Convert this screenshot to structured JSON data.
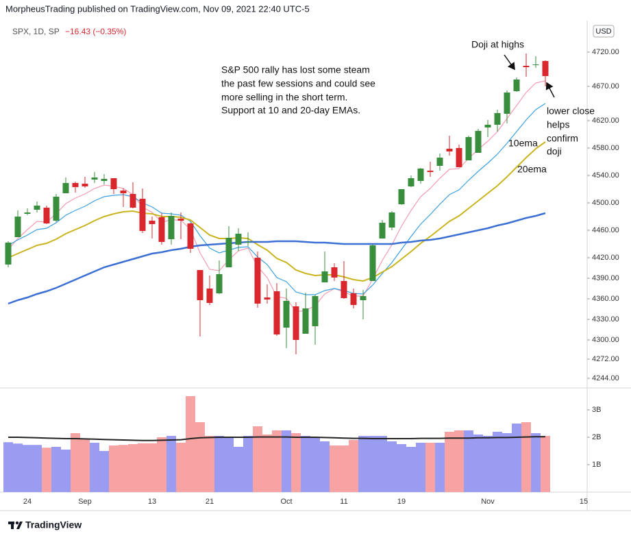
{
  "header": {
    "publisher": "MorpheusTrading published on TradingView.com, Nov 09, 2021 22:40 UTC-5",
    "symbol": "SPX, 1D, SP",
    "change": "−16.43 (−0.35%)"
  },
  "footer": {
    "brand": "TradingView"
  },
  "annotations": {
    "doji": "Doji at highs",
    "note": [
      "S&P 500 rally has lost some steam",
      "the past few sessions and could see",
      "more selling in the short term.",
      "Support at 10 and 20-day EMAs."
    ],
    "confirm": [
      "lower close",
      "helps",
      "confirm",
      "doji"
    ]
  },
  "chart_data": {
    "type": "candlestick",
    "currency": "USD",
    "categories": [
      null,
      null,
      "24",
      null,
      null,
      null,
      null,
      null,
      "Sep",
      null,
      null,
      null,
      null,
      null,
      null,
      "13",
      null,
      null,
      null,
      null,
      null,
      "21",
      null,
      null,
      null,
      null,
      null,
      null,
      null,
      "Oct",
      null,
      null,
      null,
      null,
      null,
      "11",
      null,
      null,
      null,
      null,
      null,
      "19",
      null,
      null,
      null,
      null,
      null,
      null,
      null,
      null,
      "Nov",
      null,
      null,
      null,
      null,
      null,
      null,
      null,
      null,
      null,
      "15"
    ],
    "open": [
      4410,
      4450,
      4484,
      4490,
      4493,
      4474,
      4514,
      4529,
      4528,
      4534,
      4532,
      4536,
      4518,
      4513,
      4506,
      4474,
      4479,
      4447,
      4477,
      4470,
      4402,
      4375,
      4368,
      4406,
      4439,
      4443,
      4420,
      4362,
      4371,
      4318,
      4349,
      4309,
      4320,
      4384,
      4406,
      4386,
      4368,
      4358,
      4386,
      4448,
      4464,
      4498,
      4524,
      4532,
      4547,
      4554,
      4579,
      4580,
      4562,
      4573,
      4610,
      4614,
      4630,
      4663,
      4700,
      4702,
      4707,
      null,
      null,
      null,
      null
    ],
    "high": [
      4444,
      4489,
      4492,
      4502,
      4496,
      4513,
      4537,
      4531,
      4538,
      4545,
      4542,
      4536,
      4521,
      4530,
      4521,
      4480,
      4485,
      4486,
      4486,
      4471,
      4402,
      4394,
      4416,
      4466,
      4463,
      4457,
      4429,
      4381,
      4383,
      4375,
      4355,
      4369,
      4366,
      4429,
      4412,
      4415,
      4375,
      4373,
      4439,
      4475,
      4488,
      4520,
      4540,
      4551,
      4560,
      4572,
      4598,
      4585,
      4598,
      4608,
      4621,
      4636,
      4664,
      4683,
      4718,
      4714,
      4708,
      null,
      null,
      null,
      null
    ],
    "low": [
      4406,
      4450,
      4482,
      4486,
      4469,
      4472,
      4514,
      4515,
      4522,
      4529,
      4527,
      4513,
      4494,
      4492,
      4456,
      4448,
      4439,
      4439,
      4447,
      4427,
      4305,
      4351,
      4367,
      4406,
      4430,
      4437,
      4347,
      4353,
      4306,
      4288,
      4279,
      4309,
      4293,
      4384,
      4386,
      4360,
      4346,
      4330,
      4386,
      4448,
      4460,
      4497,
      4523,
      4528,
      4538,
      4547,
      4569,
      4552,
      4562,
      4573,
      4596,
      4604,
      4616,
      4662,
      4684,
      4697,
      4670,
      null,
      null,
      null,
      null
    ],
    "close": [
      4442,
      4480,
      4486,
      4496,
      4470,
      4509,
      4529,
      4523,
      4524,
      4537,
      4535,
      4520,
      4514,
      4493,
      4459,
      4469,
      4443,
      4481,
      4474,
      4433,
      4358,
      4354,
      4396,
      4449,
      4455,
      4443,
      4353,
      4359,
      4308,
      4357,
      4300,
      4346,
      4364,
      4400,
      4391,
      4361,
      4351,
      4364,
      4438,
      4471,
      4486,
      4520,
      4536,
      4550,
      4545,
      4566,
      4575,
      4552,
      4596,
      4605,
      4614,
      4631,
      4661,
      4680,
      4698,
      4702,
      4685,
      null,
      null,
      null,
      null
    ],
    "up_color": "#388e3c",
    "down_color": "#d9272e",
    "series": [
      {
        "color": "#f29bb0",
        "values": [
          4432,
          4448,
          4461,
          4473,
          4472,
          4484,
          4499,
          4507,
          4513,
          4521,
          4526,
          4524,
          4521,
          4512,
          4494,
          4486,
          4472,
          4475,
          4475,
          4461,
          4427,
          4403,
          4401,
          4417,
          4430,
          4434,
          4407,
          4391,
          4363,
          4361,
          4341,
          4343,
          4350,
          4367,
          4375,
          4370,
          4364,
          4364,
          4389,
          4416,
          4439,
          4466,
          4489,
          4509,
          4521,
          4536,
          4549,
          4550,
          4565,
          4578,
          4590,
          4604,
          4623,
          4642,
          4661,
          4675,
          4678,
          null,
          null,
          null,
          null
        ]
      },
      {
        "name": "10ema",
        "color": "#3aa0e0",
        "values": [
          4438,
          4446,
          4453,
          4461,
          4463,
          4471,
          4482,
          4489,
          4495,
          4503,
          4509,
          4511,
          4512,
          4509,
          4500,
          4494,
          4485,
          4484,
          4482,
          4473,
          4452,
          4434,
          4427,
          4431,
          4435,
          4436,
          4421,
          4410,
          4391,
          4385,
          4370,
          4366,
          4366,
          4372,
          4375,
          4372,
          4368,
          4367,
          4380,
          4397,
          4413,
          4432,
          4451,
          4469,
          4483,
          4498,
          4512,
          4519,
          4533,
          4546,
          4558,
          4571,
          4587,
          4604,
          4621,
          4636,
          4645,
          null,
          null,
          null,
          null
        ]
      },
      {
        "name": "20ema",
        "color": "#c9b41e",
        "values": [
          4420,
          4426,
          4432,
          4438,
          4441,
          4447,
          4455,
          4461,
          4467,
          4474,
          4480,
          4484,
          4487,
          4488,
          4485,
          4484,
          4480,
          4480,
          4479,
          4475,
          4464,
          4453,
          4448,
          4448,
          4449,
          4448,
          4439,
          4431,
          4419,
          4413,
          4402,
          4397,
          4394,
          4395,
          4395,
          4392,
          4388,
          4386,
          4391,
          4399,
          4407,
          4418,
          4429,
          4441,
          4451,
          4462,
          4473,
          4481,
          4492,
          4503,
          4514,
          4525,
          4538,
          4552,
          4566,
          4579,
          4589,
          null,
          null,
          null,
          null
        ]
      },
      {
        "color": "#3b6fd4",
        "values": [
          4353,
          4358,
          4362,
          4367,
          4371,
          4376,
          4382,
          4388,
          4394,
          4400,
          4406,
          4410,
          4414,
          4418,
          4422,
          4426,
          4428,
          4431,
          4433,
          4436,
          4438,
          4439,
          4440,
          4441,
          4442,
          4443,
          4443,
          4443,
          4444,
          4444,
          4444,
          4443,
          4442,
          4442,
          4441,
          4440,
          4440,
          4440,
          4440,
          4440,
          4440,
          4442,
          4443,
          4445,
          4446,
          4448,
          4451,
          4454,
          4457,
          4460,
          4463,
          4467,
          4470,
          4474,
          4478,
          4481,
          4485,
          null,
          null,
          null,
          null
        ]
      }
    ],
    "ylim": [
      4231,
      4763
    ],
    "yticks": [
      {
        "value": 4244,
        "label": "4244.00"
      },
      {
        "value": 4272,
        "label": "4272.00"
      },
      {
        "value": 4300,
        "label": "4300.00"
      },
      {
        "value": 4330,
        "label": "4330.00"
      },
      {
        "value": 4360,
        "label": "4360.00"
      },
      {
        "value": 4390,
        "label": "4390.00"
      },
      {
        "value": 4420,
        "label": "4420.00"
      },
      {
        "value": 4460,
        "label": "4460.00"
      },
      {
        "value": 4500,
        "label": "4500.00"
      },
      {
        "value": 4540,
        "label": "4540.00"
      },
      {
        "value": 4580,
        "label": "4580.00"
      },
      {
        "value": 4620,
        "label": "4620.00"
      },
      {
        "value": 4670,
        "label": "4670.00"
      },
      {
        "value": 4720,
        "label": "4720.00"
      }
    ],
    "volume": {
      "up_color": "#9a9cf2",
      "down_color": "#f7a3a3",
      "values": [
        1.82,
        1.77,
        1.72,
        1.72,
        1.62,
        1.65,
        1.55,
        2.15,
        1.93,
        1.8,
        1.5,
        1.7,
        1.72,
        1.75,
        1.78,
        1.78,
        2.0,
        2.05,
        1.8,
        3.5,
        2.55,
        2.05,
        2.05,
        1.98,
        1.65,
        2.05,
        2.4,
        2.1,
        2.25,
        2.25,
        2.15,
        2.05,
        2.0,
        1.85,
        1.7,
        1.7,
        1.9,
        2.05,
        2.05,
        2.05,
        1.85,
        1.75,
        1.65,
        1.8,
        1.8,
        1.8,
        2.2,
        2.25,
        2.25,
        2.1,
        2.05,
        2.2,
        2.15,
        2.5,
        2.55,
        2.15,
        2.05,
        null,
        null,
        null,
        null
      ],
      "ma": {
        "color": "#222222",
        "values": [
          2.0,
          2.0,
          1.99,
          1.98,
          1.97,
          1.96,
          1.95,
          1.95,
          1.94,
          1.93,
          1.92,
          1.91,
          1.9,
          1.89,
          1.88,
          1.88,
          1.89,
          1.9,
          1.91,
          1.95,
          1.98,
          1.99,
          2.0,
          2.0,
          2.0,
          2.0,
          2.01,
          2.01,
          2.01,
          2.01,
          2.0,
          2.0,
          2.0,
          1.99,
          1.98,
          1.97,
          1.96,
          1.96,
          1.95,
          1.95,
          1.95,
          1.95,
          1.95,
          1.96,
          1.96,
          1.96,
          1.97,
          1.97,
          1.97,
          1.98,
          1.98,
          1.99,
          1.99,
          2.0,
          2.01,
          2.02,
          2.02,
          null,
          null,
          null,
          null
        ]
      },
      "ylim": [
        0,
        3.75
      ],
      "yticks": [
        {
          "value": 1,
          "label": "1B"
        },
        {
          "value": 2,
          "label": "2B"
        },
        {
          "value": 3,
          "label": "3B"
        }
      ]
    }
  }
}
